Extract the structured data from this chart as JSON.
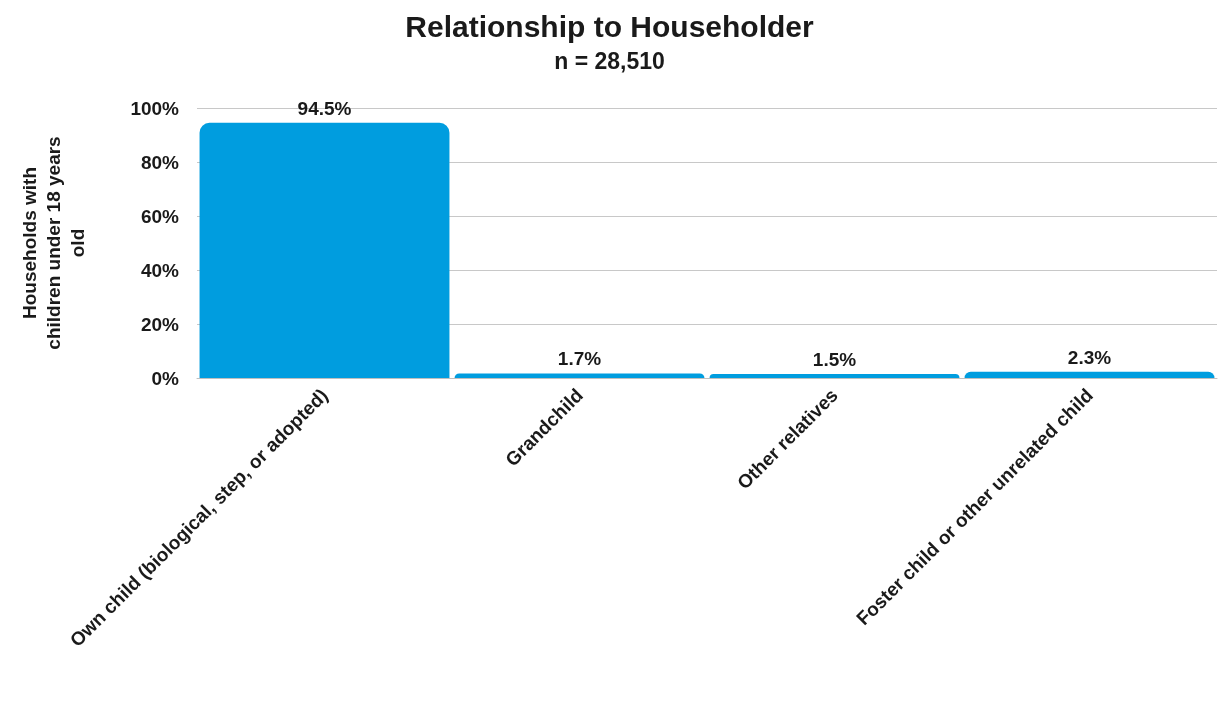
{
  "chart_data": {
    "type": "bar",
    "title": "Relationship to Householder",
    "subtitle": "n = 28,510",
    "ylabel": "Households with children under 18 years old",
    "categories": [
      "Own child (biological, step, or adopted)",
      "Grandchild",
      "Other relatives",
      "Foster child or other unrelated child"
    ],
    "values": [
      94.5,
      1.7,
      1.5,
      2.3
    ],
    "value_labels": [
      "94.5%",
      "1.7%",
      "1.5%",
      "2.3%"
    ],
    "color": "#009ddf",
    "ylim": [
      0,
      100
    ],
    "yticks": [
      {
        "value": 0,
        "label": "0%"
      },
      {
        "value": 20,
        "label": "20%"
      },
      {
        "value": 40,
        "label": "40%"
      },
      {
        "value": 60,
        "label": "60%"
      },
      {
        "value": 80,
        "label": "80%"
      },
      {
        "value": 100,
        "label": "100%"
      }
    ],
    "grid": "y"
  }
}
